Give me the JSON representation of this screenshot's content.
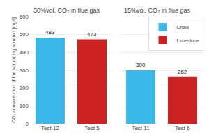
{
  "chart_data": [
    {
      "type": "bar",
      "title": "30%vol. CO₂ in flue gas",
      "ylabel": "CO₂ consumption of the scrubbing solution [mg/l]",
      "categories": [
        "Test 12",
        "Test 5"
      ],
      "values": [
        483,
        473
      ],
      "colors": [
        "#3bb8e8",
        "#cc2222"
      ],
      "ylim": [
        0,
        600
      ],
      "yticks": [
        0,
        100,
        200,
        300,
        400,
        500,
        600
      ],
      "grid": true,
      "data_labels": true
    },
    {
      "type": "bar",
      "title": "15%vol. CO₂ in flue gas",
      "categories": [
        "Test 11",
        "Test 6"
      ],
      "series": [
        {
          "name": "Chalk",
          "color": "#3bb8e8",
          "values": [
            300,
            null
          ]
        },
        {
          "name": "Limestone",
          "color": "#cc2222",
          "values": [
            null,
            262
          ]
        }
      ],
      "ylim": [
        0,
        600
      ],
      "yticks": [
        0,
        100,
        200,
        300,
        400,
        500,
        600
      ],
      "grid": true,
      "data_labels": true,
      "legend": "upper right",
      "tick_labels": "x"
    }
  ]
}
